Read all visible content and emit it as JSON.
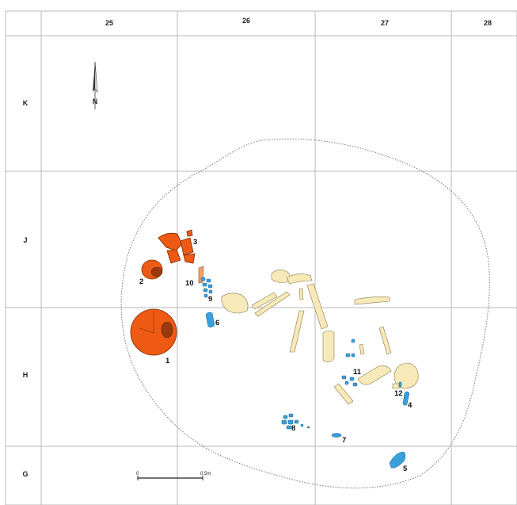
{
  "grid": {
    "columns": [
      "25",
      "26",
      "27",
      "28"
    ],
    "rows": [
      "K",
      "J",
      "H",
      "G"
    ]
  },
  "north_label": "N",
  "scale_bar": {
    "start_label": "0",
    "end_label": "0,5m"
  },
  "finds": [
    {
      "id": "1",
      "label": "1",
      "kind": "pot"
    },
    {
      "id": "2",
      "label": "2",
      "kind": "pot"
    },
    {
      "id": "3",
      "label": "3",
      "kind": "pot"
    },
    {
      "id": "4",
      "label": "4",
      "kind": "blue"
    },
    {
      "id": "5",
      "label": "5",
      "kind": "blue"
    },
    {
      "id": "6",
      "label": "6",
      "kind": "blue"
    },
    {
      "id": "7",
      "label": "7",
      "kind": "blue"
    },
    {
      "id": "8",
      "label": "8",
      "kind": "blue"
    },
    {
      "id": "9",
      "label": "9",
      "kind": "blue"
    },
    {
      "id": "10",
      "label": "10",
      "kind": "pot"
    },
    {
      "id": "11",
      "label": "11",
      "kind": "blue"
    },
    {
      "id": "12",
      "label": "12",
      "kind": "blue"
    }
  ],
  "colors": {
    "pottery": "#ee5a14",
    "blue_finds": "#3aa0dd",
    "bones": "#f7e9b8",
    "grid": "#b8b8b8"
  }
}
